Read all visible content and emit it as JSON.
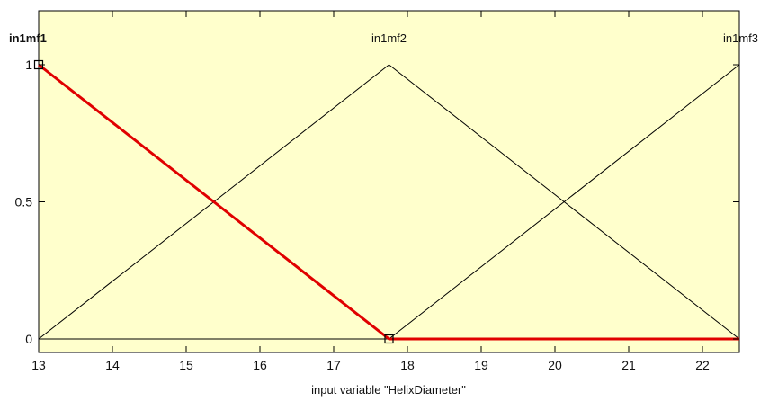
{
  "chart_data": {
    "type": "line",
    "title": "",
    "xlabel": "input variable \"HelixDiameter\"",
    "ylabel": "",
    "xlim": [
      13,
      22.5
    ],
    "ylim": [
      0,
      1
    ],
    "x_ticks": [
      13,
      14,
      15,
      16,
      17,
      18,
      19,
      20,
      21,
      22
    ],
    "y_ticks": [
      {
        "value": 0,
        "label": "0"
      },
      {
        "value": 0.5,
        "label": "0.5"
      },
      {
        "value": 1,
        "label": "1"
      }
    ],
    "grid": false,
    "series": [
      {
        "name": "in1mf1",
        "color": "#e00000",
        "selected": true,
        "x": [
          13,
          17.75,
          22.5
        ],
        "y": [
          1,
          0,
          0
        ]
      },
      {
        "name": "in1mf2",
        "color": "#000000",
        "selected": false,
        "x": [
          13,
          17.75,
          22.5
        ],
        "y": [
          0,
          1,
          0
        ]
      },
      {
        "name": "in1mf3",
        "color": "#000000",
        "selected": false,
        "x": [
          13,
          17.75,
          22.5
        ],
        "y": [
          0,
          0,
          1
        ]
      }
    ],
    "selected_handles": [
      {
        "x": 13,
        "y": 1
      },
      {
        "x": 17.75,
        "y": 0
      }
    ]
  },
  "colors": {
    "plot_background": "#ffffcc",
    "selected_series": "#e00000",
    "axis": "#000000"
  }
}
